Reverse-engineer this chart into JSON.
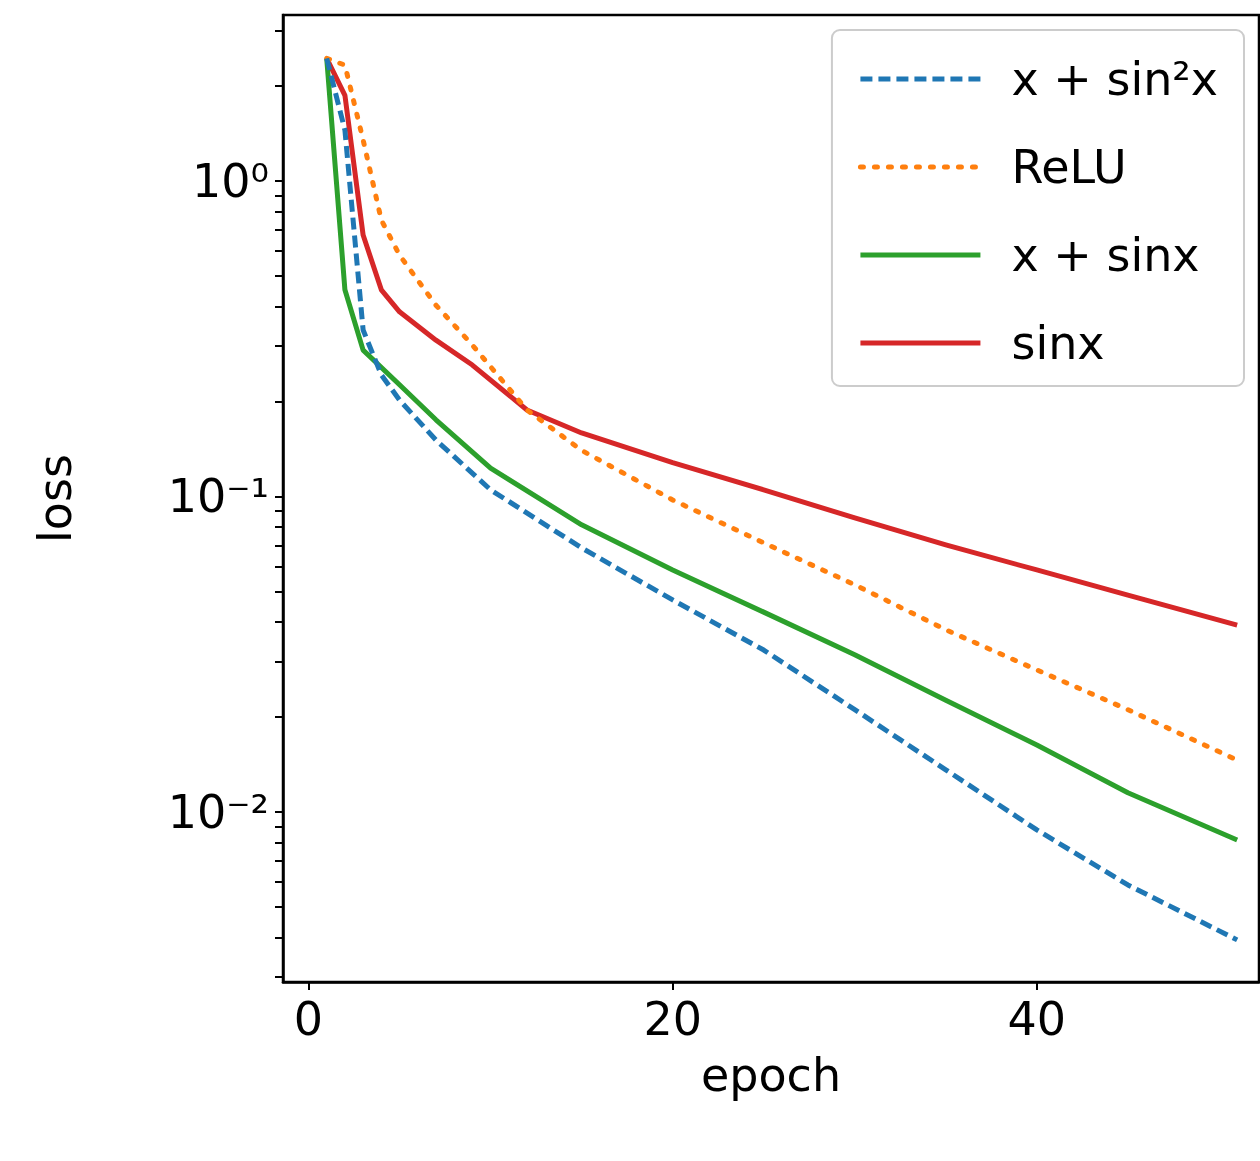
{
  "chart_data": {
    "type": "line",
    "xlabel": "epoch",
    "ylabel": "loss",
    "log": "y",
    "grid": false,
    "legend": "top right",
    "marker": "none",
    "xlim": [
      -1.4,
      52.2
    ],
    "xticks": [
      0,
      20,
      40
    ],
    "ylim": [
      0.00289,
      3.36
    ],
    "yticks": [
      {
        "value": 0.003,
        "label": null
      },
      {
        "value": 0.004,
        "label": null
      },
      {
        "value": 0.005,
        "label": null
      },
      {
        "value": 0.006,
        "label": null
      },
      {
        "value": 0.007,
        "label": null
      },
      {
        "value": 0.008,
        "label": null
      },
      {
        "value": 0.009,
        "label": null
      },
      {
        "value": 0.01,
        "label": "10⁻²"
      },
      {
        "value": 0.02,
        "label": null
      },
      {
        "value": 0.03,
        "label": null
      },
      {
        "value": 0.04,
        "label": null
      },
      {
        "value": 0.05,
        "label": null
      },
      {
        "value": 0.06,
        "label": null
      },
      {
        "value": 0.07,
        "label": null
      },
      {
        "value": 0.08,
        "label": null
      },
      {
        "value": 0.09,
        "label": null
      },
      {
        "value": 0.1,
        "label": "10⁻¹"
      },
      {
        "value": 0.2,
        "label": null
      },
      {
        "value": 0.3,
        "label": null
      },
      {
        "value": 0.4,
        "label": null
      },
      {
        "value": 0.5,
        "label": null
      },
      {
        "value": 0.6,
        "label": null
      },
      {
        "value": 0.7,
        "label": null
      },
      {
        "value": 0.8,
        "label": null
      },
      {
        "value": 0.9,
        "label": null
      },
      {
        "value": 1,
        "label": "10⁰"
      },
      {
        "value": 2,
        "label": null
      },
      {
        "value": 3,
        "label": null
      }
    ],
    "series": [
      {
        "name": "x + sin²x",
        "color": "#1f77b4",
        "line_style": "dashed",
        "x": [
          1,
          2,
          3,
          4,
          5,
          7,
          10,
          15,
          20,
          25,
          30,
          35,
          40,
          45,
          51
        ],
        "values": [
          2.45,
          1.45,
          0.337,
          0.243,
          0.202,
          0.151,
          0.105,
          0.0687,
          0.047,
          0.0326,
          0.0211,
          0.0136,
          0.00877,
          0.00587,
          0.00393
        ]
      },
      {
        "name": "ReLU",
        "color": "#ff7f0e",
        "line_style": "dotted",
        "x": [
          1,
          2,
          3,
          4,
          5,
          7,
          9,
          12,
          15,
          20,
          25,
          30,
          35,
          40,
          45,
          51
        ],
        "values": [
          2.45,
          2.33,
          1.35,
          0.752,
          0.582,
          0.404,
          0.302,
          0.188,
          0.14,
          0.0975,
          0.0713,
          0.0525,
          0.0378,
          0.0282,
          0.0211,
          0.0146
        ]
      },
      {
        "name": "x + sinx",
        "color": "#2ca02c",
        "line_style": "solid",
        "x": [
          1,
          2,
          3,
          5,
          7,
          10,
          15,
          20,
          25,
          30,
          35,
          40,
          45,
          51
        ],
        "values": [
          2.45,
          0.452,
          0.291,
          0.226,
          0.175,
          0.123,
          0.0813,
          0.0585,
          0.043,
          0.0315,
          0.0226,
          0.0163,
          0.0115,
          0.00815
        ]
      },
      {
        "name": "sinx",
        "color": "#d62728",
        "line_style": "solid",
        "x": [
          1,
          2,
          3,
          4,
          5,
          7,
          9,
          12,
          15,
          20,
          25,
          30,
          35,
          40,
          45,
          51
        ],
        "values": [
          2.45,
          1.87,
          0.674,
          0.452,
          0.385,
          0.313,
          0.261,
          0.188,
          0.159,
          0.128,
          0.105,
          0.0855,
          0.0702,
          0.0585,
          0.0487,
          0.0391
        ]
      }
    ]
  }
}
